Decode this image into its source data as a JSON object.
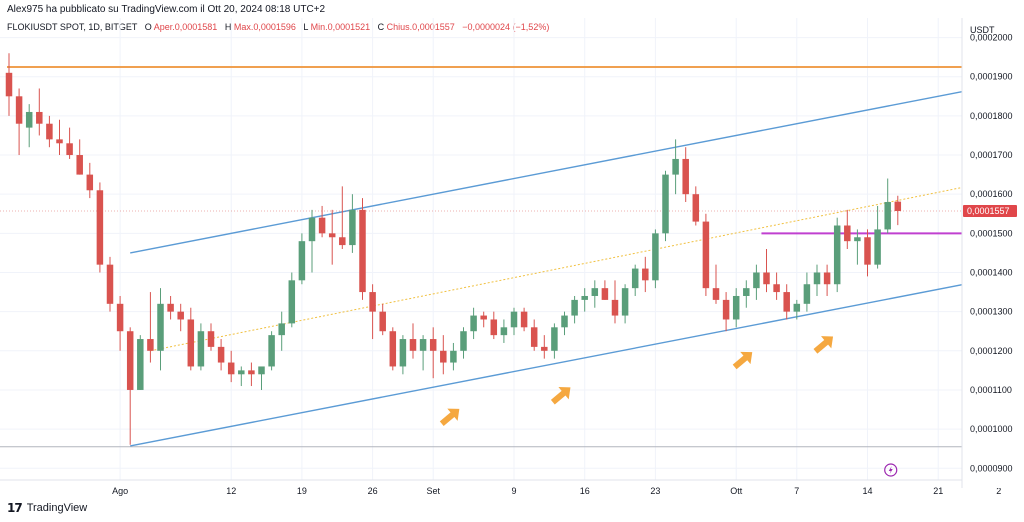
{
  "header": {
    "published_text": "Alex975 ha pubblicato su TradingView.com il Ott 20, 2024 08:18 UTC+2"
  },
  "legend": {
    "symbol": "FLOKIUSDT SPOT, 1D, BITGET",
    "open_label": "O",
    "open_text": "Aper.0,0001581",
    "high_label": "H",
    "high_text": "Max.0,0001596",
    "low_label": "L",
    "low_text": "Min.0,0001521",
    "close_label": "C",
    "close_text": "Chius.0,0001557",
    "change_text": "−0,0000024 (−1,52%)"
  },
  "footer": {
    "brand": "TradingView"
  },
  "colors": {
    "up": "#5a9e7a",
    "down": "#d9534f",
    "channel": "#5b9bd5",
    "resistance": "#f0a050",
    "support_purple": "#c040d0",
    "midline": "#f0c040",
    "arrow": "#f5a840",
    "price_label_bg": "#e0464a"
  },
  "chart_data": {
    "type": "candlestick",
    "price_axis_label": "USDT",
    "current_price_label": "0,0001557",
    "y_ticks": [
      "0,0002000",
      "0,0001900",
      "0,0001800",
      "0,0001700",
      "0,0001600",
      "0,0001500",
      "0,0001400",
      "0,0001300",
      "0,0001200",
      "0,0001100",
      "0,0001000",
      "0,0000900"
    ],
    "x_ticks": [
      {
        "label": "Ago",
        "index": 11
      },
      {
        "label": "12",
        "index": 22
      },
      {
        "label": "19",
        "index": 29
      },
      {
        "label": "26",
        "index": 36
      },
      {
        "label": "Set",
        "index": 42
      },
      {
        "label": "9",
        "index": 50
      },
      {
        "label": "16",
        "index": 57
      },
      {
        "label": "23",
        "index": 64
      },
      {
        "label": "Ott",
        "index": 72
      },
      {
        "label": "7",
        "index": 78
      },
      {
        "label": "14",
        "index": 85
      },
      {
        "label": "21",
        "index": 92
      },
      {
        "label": "2",
        "index": 98
      }
    ],
    "ylim": [
      8.7e-05,
      0.000205
    ],
    "candles": [
      {
        "o": 0.000191,
        "h": 0.000196,
        "l": 0.00018,
        "c": 0.000185
      },
      {
        "o": 0.000185,
        "h": 0.000187,
        "l": 0.00017,
        "c": 0.000178
      },
      {
        "o": 0.000177,
        "h": 0.000183,
        "l": 0.000172,
        "c": 0.000181
      },
      {
        "o": 0.000181,
        "h": 0.000187,
        "l": 0.000175,
        "c": 0.000178
      },
      {
        "o": 0.000178,
        "h": 0.00018,
        "l": 0.000172,
        "c": 0.000174
      },
      {
        "o": 0.000174,
        "h": 0.000179,
        "l": 0.00017,
        "c": 0.000173
      },
      {
        "o": 0.000173,
        "h": 0.000177,
        "l": 0.000169,
        "c": 0.00017
      },
      {
        "o": 0.00017,
        "h": 0.000174,
        "l": 0.000165,
        "c": 0.000165
      },
      {
        "o": 0.000165,
        "h": 0.000168,
        "l": 0.000159,
        "c": 0.000161
      },
      {
        "o": 0.000161,
        "h": 0.000163,
        "l": 0.00014,
        "c": 0.000142
      },
      {
        "o": 0.000142,
        "h": 0.000144,
        "l": 0.00013,
        "c": 0.000132
      },
      {
        "o": 0.000132,
        "h": 0.000134,
        "l": 0.00012,
        "c": 0.000125
      },
      {
        "o": 0.000125,
        "h": 0.000126,
        "l": 9.6e-05,
        "c": 0.00011
      },
      {
        "o": 0.00011,
        "h": 0.000124,
        "l": 0.00011,
        "c": 0.000123
      },
      {
        "o": 0.000123,
        "h": 0.000135,
        "l": 0.000117,
        "c": 0.00012
      },
      {
        "o": 0.00012,
        "h": 0.000136,
        "l": 0.000115,
        "c": 0.000132
      },
      {
        "o": 0.000132,
        "h": 0.000134,
        "l": 0.000128,
        "c": 0.00013
      },
      {
        "o": 0.00013,
        "h": 0.000132,
        "l": 0.000125,
        "c": 0.000128
      },
      {
        "o": 0.000128,
        "h": 0.000131,
        "l": 0.000115,
        "c": 0.000116
      },
      {
        "o": 0.000116,
        "h": 0.000127,
        "l": 0.000115,
        "c": 0.000125
      },
      {
        "o": 0.000125,
        "h": 0.000127,
        "l": 0.00012,
        "c": 0.000121
      },
      {
        "o": 0.000121,
        "h": 0.000123,
        "l": 0.000115,
        "c": 0.000117
      },
      {
        "o": 0.000117,
        "h": 0.00012,
        "l": 0.000112,
        "c": 0.000114
      },
      {
        "o": 0.000114,
        "h": 0.000116,
        "l": 0.000111,
        "c": 0.000115
      },
      {
        "o": 0.000115,
        "h": 0.000117,
        "l": 0.000111,
        "c": 0.000114
      },
      {
        "o": 0.000114,
        "h": 0.000116,
        "l": 0.00011,
        "c": 0.000116
      },
      {
        "o": 0.000116,
        "h": 0.000125,
        "l": 0.000115,
        "c": 0.000124
      },
      {
        "o": 0.000124,
        "h": 0.00013,
        "l": 0.00012,
        "c": 0.000127
      },
      {
        "o": 0.000127,
        "h": 0.00014,
        "l": 0.000126,
        "c": 0.000138
      },
      {
        "o": 0.000138,
        "h": 0.00015,
        "l": 0.000137,
        "c": 0.000148
      },
      {
        "o": 0.000148,
        "h": 0.000156,
        "l": 0.00014,
        "c": 0.000154
      },
      {
        "o": 0.000154,
        "h": 0.000157,
        "l": 0.000149,
        "c": 0.00015
      },
      {
        "o": 0.00015,
        "h": 0.000156,
        "l": 0.000142,
        "c": 0.000149
      },
      {
        "o": 0.000149,
        "h": 0.000162,
        "l": 0.000146,
        "c": 0.000147
      },
      {
        "o": 0.000147,
        "h": 0.00016,
        "l": 0.000145,
        "c": 0.000156
      },
      {
        "o": 0.000156,
        "h": 0.000159,
        "l": 0.000133,
        "c": 0.000135
      },
      {
        "o": 0.000135,
        "h": 0.000137,
        "l": 0.000123,
        "c": 0.00013
      },
      {
        "o": 0.00013,
        "h": 0.000132,
        "l": 0.000124,
        "c": 0.000125
      },
      {
        "o": 0.000125,
        "h": 0.000126,
        "l": 0.000115,
        "c": 0.000116
      },
      {
        "o": 0.000116,
        "h": 0.000124,
        "l": 0.000114,
        "c": 0.000123
      },
      {
        "o": 0.000123,
        "h": 0.000127,
        "l": 0.000118,
        "c": 0.00012
      },
      {
        "o": 0.00012,
        "h": 0.000124,
        "l": 0.000115,
        "c": 0.000123
      },
      {
        "o": 0.000123,
        "h": 0.000126,
        "l": 0.000113,
        "c": 0.00012
      },
      {
        "o": 0.00012,
        "h": 0.000124,
        "l": 0.000114,
        "c": 0.000117
      },
      {
        "o": 0.000117,
        "h": 0.000122,
        "l": 0.000115,
        "c": 0.00012
      },
      {
        "o": 0.00012,
        "h": 0.000126,
        "l": 0.000118,
        "c": 0.000125
      },
      {
        "o": 0.000125,
        "h": 0.000131,
        "l": 0.000123,
        "c": 0.000129
      },
      {
        "o": 0.000129,
        "h": 0.00013,
        "l": 0.000126,
        "c": 0.000128
      },
      {
        "o": 0.000128,
        "h": 0.00013,
        "l": 0.000123,
        "c": 0.000124
      },
      {
        "o": 0.000124,
        "h": 0.000128,
        "l": 0.000122,
        "c": 0.000126
      },
      {
        "o": 0.000126,
        "h": 0.000131,
        "l": 0.000124,
        "c": 0.00013
      },
      {
        "o": 0.00013,
        "h": 0.000131,
        "l": 0.000125,
        "c": 0.000126
      },
      {
        "o": 0.000126,
        "h": 0.000128,
        "l": 0.00012,
        "c": 0.000121
      },
      {
        "o": 0.000121,
        "h": 0.000124,
        "l": 0.000118,
        "c": 0.00012
      },
      {
        "o": 0.00012,
        "h": 0.000127,
        "l": 0.000118,
        "c": 0.000126
      },
      {
        "o": 0.000126,
        "h": 0.00013,
        "l": 0.000124,
        "c": 0.000129
      },
      {
        "o": 0.000129,
        "h": 0.000134,
        "l": 0.000127,
        "c": 0.000133
      },
      {
        "o": 0.000133,
        "h": 0.000136,
        "l": 0.00013,
        "c": 0.000134
      },
      {
        "o": 0.000134,
        "h": 0.000138,
        "l": 0.000131,
        "c": 0.000136
      },
      {
        "o": 0.000136,
        "h": 0.000138,
        "l": 0.000133,
        "c": 0.000133
      },
      {
        "o": 0.000133,
        "h": 0.000138,
        "l": 0.000127,
        "c": 0.000129
      },
      {
        "o": 0.000129,
        "h": 0.000137,
        "l": 0.000127,
        "c": 0.000136
      },
      {
        "o": 0.000136,
        "h": 0.000142,
        "l": 0.000134,
        "c": 0.000141
      },
      {
        "o": 0.000141,
        "h": 0.000144,
        "l": 0.000135,
        "c": 0.000138
      },
      {
        "o": 0.000138,
        "h": 0.000151,
        "l": 0.000136,
        "c": 0.00015
      },
      {
        "o": 0.00015,
        "h": 0.000166,
        "l": 0.000148,
        "c": 0.000165
      },
      {
        "o": 0.000165,
        "h": 0.000174,
        "l": 0.00016,
        "c": 0.000169
      },
      {
        "o": 0.000169,
        "h": 0.000172,
        "l": 0.000158,
        "c": 0.00016
      },
      {
        "o": 0.00016,
        "h": 0.000162,
        "l": 0.000152,
        "c": 0.000153
      },
      {
        "o": 0.000153,
        "h": 0.000155,
        "l": 0.000134,
        "c": 0.000136
      },
      {
        "o": 0.000136,
        "h": 0.000142,
        "l": 0.000132,
        "c": 0.000133
      },
      {
        "o": 0.000133,
        "h": 0.000135,
        "l": 0.000125,
        "c": 0.000128
      },
      {
        "o": 0.000128,
        "h": 0.000136,
        "l": 0.000126,
        "c": 0.000134
      },
      {
        "o": 0.000134,
        "h": 0.000138,
        "l": 0.000131,
        "c": 0.000136
      },
      {
        "o": 0.000136,
        "h": 0.000142,
        "l": 0.000133,
        "c": 0.00014
      },
      {
        "o": 0.00014,
        "h": 0.000146,
        "l": 0.000135,
        "c": 0.000137
      },
      {
        "o": 0.000137,
        "h": 0.00014,
        "l": 0.000133,
        "c": 0.000135
      },
      {
        "o": 0.000135,
        "h": 0.000137,
        "l": 0.000128,
        "c": 0.00013
      },
      {
        "o": 0.00013,
        "h": 0.000133,
        "l": 0.000128,
        "c": 0.000132
      },
      {
        "o": 0.000132,
        "h": 0.00014,
        "l": 0.00013,
        "c": 0.000137
      },
      {
        "o": 0.000137,
        "h": 0.000142,
        "l": 0.000134,
        "c": 0.00014
      },
      {
        "o": 0.00014,
        "h": 0.000142,
        "l": 0.000134,
        "c": 0.000137
      },
      {
        "o": 0.000137,
        "h": 0.000154,
        "l": 0.000135,
        "c": 0.000152
      },
      {
        "o": 0.000152,
        "h": 0.000156,
        "l": 0.000146,
        "c": 0.000148
      },
      {
        "o": 0.000148,
        "h": 0.000151,
        "l": 0.000142,
        "c": 0.000149
      },
      {
        "o": 0.000149,
        "h": 0.000151,
        "l": 0.000139,
        "c": 0.000142
      },
      {
        "o": 0.000142,
        "h": 0.000157,
        "l": 0.000141,
        "c": 0.000151
      },
      {
        "o": 0.000151,
        "h": 0.000164,
        "l": 0.00015,
        "c": 0.000158
      },
      {
        "o": 0.0001581,
        "h": 0.0001596,
        "l": 0.0001521,
        "c": 0.0001557
      }
    ],
    "annotations": {
      "resistance_level": 0.0001925,
      "support_purple_level": 0.00015,
      "channel_upper": [
        {
          "i": 12,
          "p": 0.000145
        },
        {
          "i": 98,
          "p": 0.000188
        }
      ],
      "channel_lower": [
        {
          "i": 12,
          "p": 9.57e-05
        },
        {
          "i": 98,
          "p": 0.0001387
        }
      ],
      "midline": [
        {
          "i": 14,
          "p": 0.00012
        },
        {
          "i": 98,
          "p": 0.0001636
        }
      ],
      "bottom_level": 9.55e-05,
      "support_arrows_at": [
        44,
        55,
        73,
        81
      ]
    }
  }
}
